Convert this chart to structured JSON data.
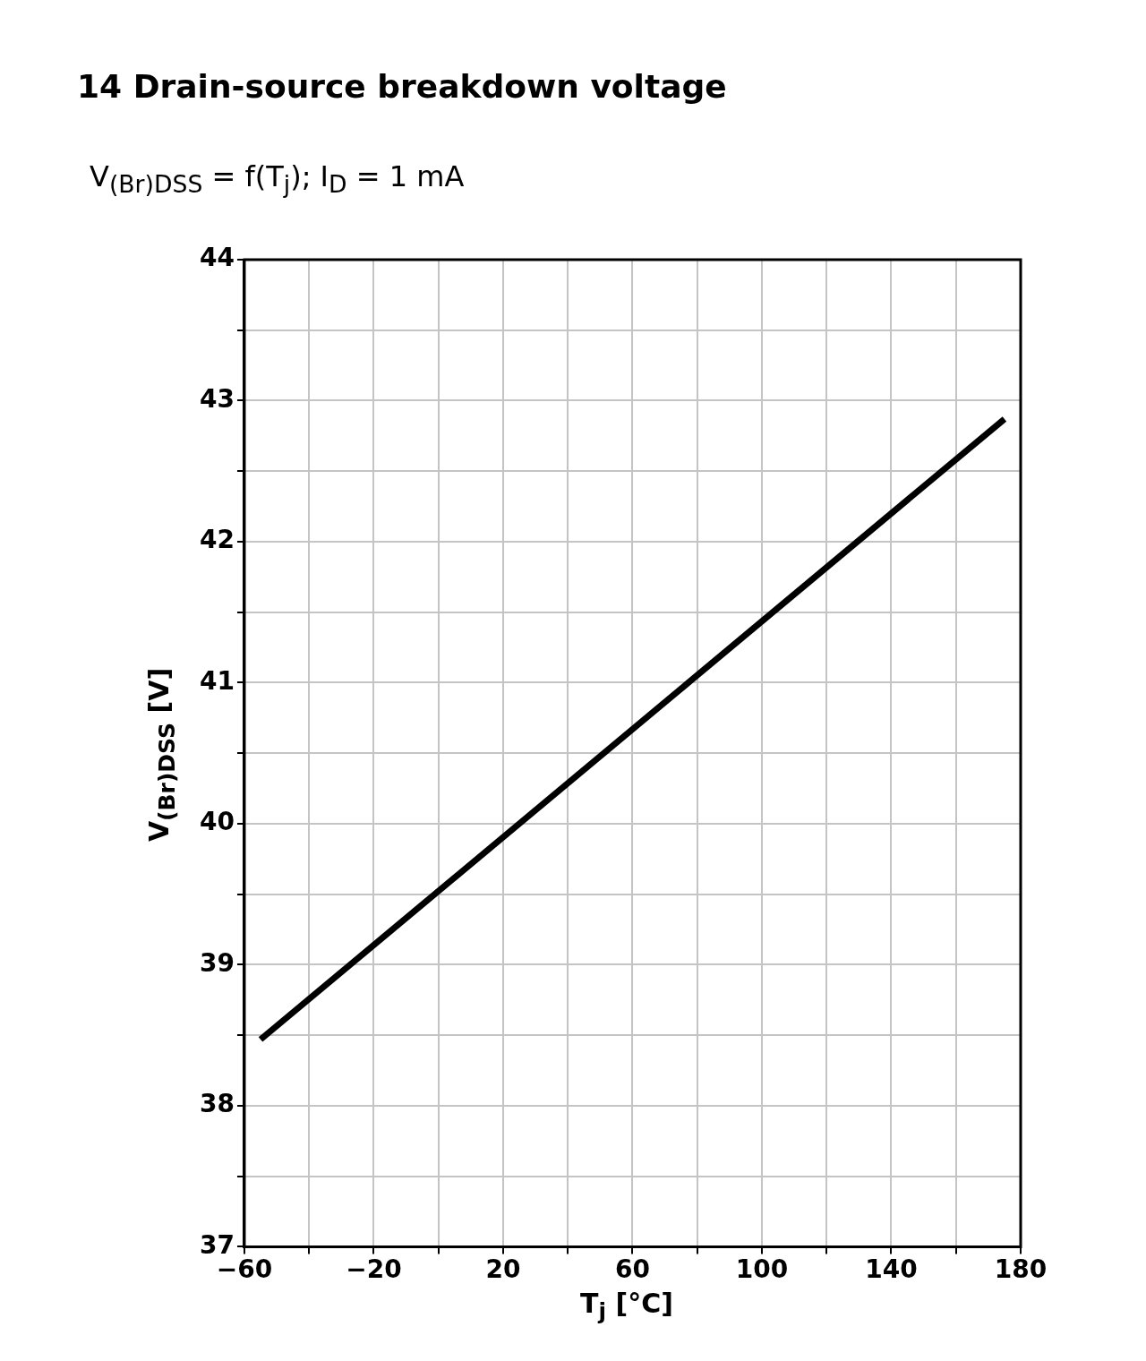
{
  "chart_data": {
    "type": "line",
    "title": "14 Drain-source breakdown voltage",
    "subtitle": "V$_{(Br)DSS}$ = f(T$_{j}$); I$_{D}$ = 1 mA",
    "xlabel": "T$_{j}$ [°C]",
    "ylabel": "V$_{(Br)DSS}$ [V]",
    "x": [
      -55,
      175
    ],
    "values": [
      38.47,
      42.87
    ],
    "color": "#000000",
    "xlim": [
      -60,
      180
    ],
    "xticks": [
      -60,
      {
        "value": -40,
        "label": null
      },
      -20,
      {
        "value": 0,
        "label": null
      },
      20,
      {
        "value": 40,
        "label": null
      },
      60,
      {
        "value": 80,
        "label": null
      },
      100,
      {
        "value": 120,
        "label": null
      },
      140,
      {
        "value": 160,
        "label": null
      },
      180
    ],
    "ylim": [
      37,
      44
    ],
    "yticks": [
      37,
      {
        "value": 37.5,
        "label": null
      },
      38,
      {
        "value": 38.5,
        "label": null
      },
      39,
      {
        "value": 39.5,
        "label": null
      },
      40,
      {
        "value": 40.5,
        "label": null
      },
      41,
      {
        "value": 41.5,
        "label": null
      },
      42,
      {
        "value": 42.5,
        "label": null
      },
      43,
      {
        "value": 43.5,
        "label": null
      },
      44
    ],
    "grid": true
  }
}
